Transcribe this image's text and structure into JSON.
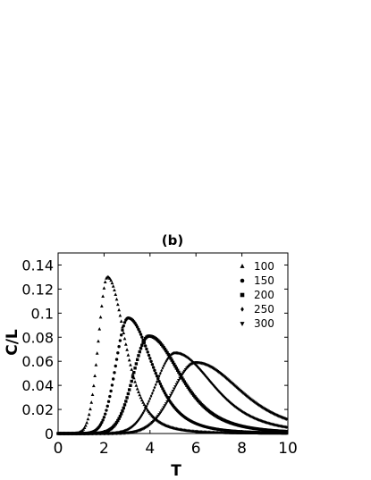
{
  "chart_data": {
    "type": "scatter",
    "title": "(b)",
    "xlabel": "T",
    "ylabel": "C/L",
    "xlim": [
      0,
      10
    ],
    "ylim": [
      0,
      0.15
    ],
    "x_ticks": [
      "0",
      "2",
      "4",
      "6",
      "8",
      "10"
    ],
    "y_ticks": [
      "0",
      "0.02",
      "0.04",
      "0.06",
      "0.08",
      "0.1",
      "0.12",
      "0.14"
    ],
    "legend_position": "top-right",
    "series": [
      {
        "name": "100",
        "marker": "triangle-up",
        "peak_x": 2.15,
        "peak_y": 0.13,
        "onset_x": 0.6,
        "width_left": 0.55,
        "tail_scale": 1.05
      },
      {
        "name": "150",
        "marker": "circle",
        "peak_x": 3.05,
        "peak_y": 0.096,
        "onset_x": 0.9,
        "width_left": 0.75,
        "tail_scale": 1.45
      },
      {
        "name": "200",
        "marker": "square",
        "peak_x": 3.95,
        "peak_y": 0.081,
        "onset_x": 1.3,
        "width_left": 0.95,
        "tail_scale": 1.9
      },
      {
        "name": "250",
        "marker": "diamond",
        "peak_x": 5.1,
        "peak_y": 0.067,
        "onset_x": 1.8,
        "width_left": 1.2,
        "tail_scale": 2.3
      },
      {
        "name": "300",
        "marker": "triangle-down",
        "peak_x": 6.0,
        "peak_y": 0.059,
        "onset_x": 2.3,
        "width_left": 1.4,
        "tail_scale": 2.7
      }
    ]
  }
}
